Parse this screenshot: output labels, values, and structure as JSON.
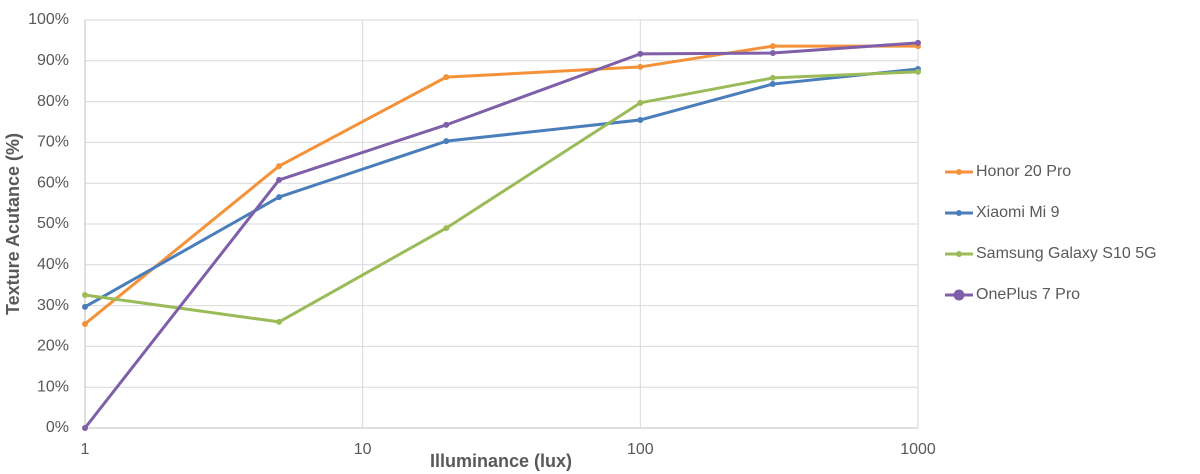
{
  "chart_data": {
    "type": "line",
    "xlabel": "Illuminance (lux)",
    "ylabel": "Texture Acutance (%)",
    "x": [
      1,
      5,
      20,
      100,
      300,
      1000
    ],
    "xscale": "log",
    "xlim": [
      1,
      1000
    ],
    "xticks": [
      1,
      10,
      100,
      1000
    ],
    "ylim": [
      0,
      100
    ],
    "yticks": [
      {
        "value": 0,
        "label": "0%"
      },
      {
        "value": 10,
        "label": "10%"
      },
      {
        "value": 20,
        "label": "20%"
      },
      {
        "value": 30,
        "label": "30%"
      },
      {
        "value": 40,
        "label": "40%"
      },
      {
        "value": 50,
        "label": "50%"
      },
      {
        "value": 60,
        "label": "60%"
      },
      {
        "value": 70,
        "label": "70%"
      },
      {
        "value": 80,
        "label": "80%"
      },
      {
        "value": 90,
        "label": "90%"
      },
      {
        "value": 100,
        "label": "100%"
      }
    ],
    "grid": true,
    "legend": "right",
    "series": [
      {
        "name": "Honor 20 Pro",
        "color": "#f4923a",
        "values": [
          25.5,
          64.2,
          86,
          88.5,
          93.6,
          93.6
        ]
      },
      {
        "name": "Xiaomi Mi 9",
        "color": "#4a7ebb",
        "values": [
          29.7,
          56.6,
          70.3,
          75.5,
          84.3,
          88
        ]
      },
      {
        "name": "Samsung Galaxy S10 5G",
        "color": "#9bbb59",
        "values": [
          32.6,
          26,
          49,
          79.7,
          85.8,
          87.3
        ]
      },
      {
        "name": "OnePlus 7 Pro",
        "color": "#7f5fa8",
        "values": [
          0,
          60.8,
          74.3,
          91.7,
          91.9,
          94.4
        ]
      }
    ]
  }
}
